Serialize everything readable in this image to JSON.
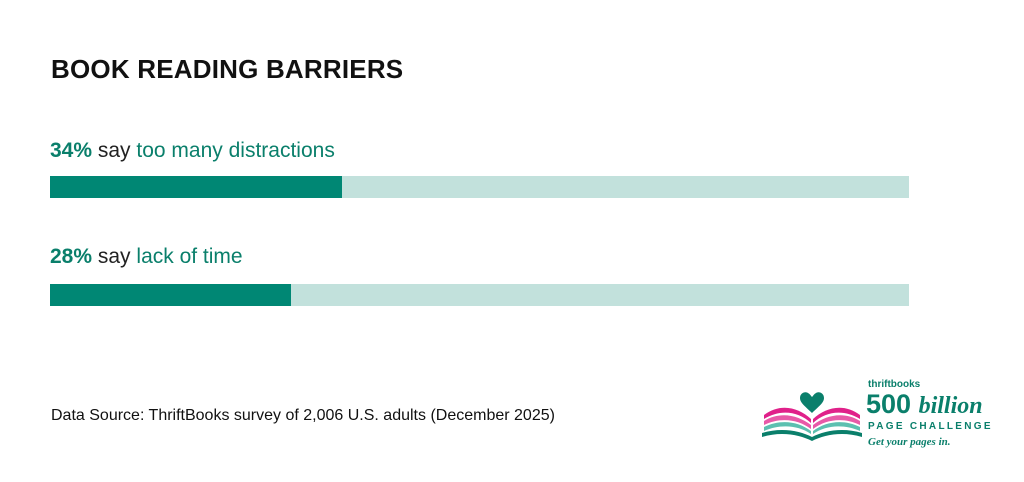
{
  "chart_data": {
    "type": "bar",
    "title": "BOOK READING BARRIERS",
    "categories": [
      "too many distractions",
      "lack of time"
    ],
    "values": [
      34,
      28
    ],
    "value_labels": [
      "34%",
      "28%"
    ],
    "connector": "say",
    "unit": "%",
    "xlim": [
      0,
      100
    ],
    "orientation": "horizontal",
    "grid": false,
    "legend": "none",
    "colors": {
      "fill": "#008774",
      "track": "#c2e1dc",
      "accent_text": "#0a7f6b"
    }
  },
  "source": "Data Source: ThriftBooks survey of 2,006 U.S. adults (December 2025)",
  "logo": {
    "brand": "thriftbooks",
    "big_number": "500",
    "big_word": "billion",
    "subtitle": "PAGE CHALLENGE",
    "tagline": "Get your pages in."
  }
}
